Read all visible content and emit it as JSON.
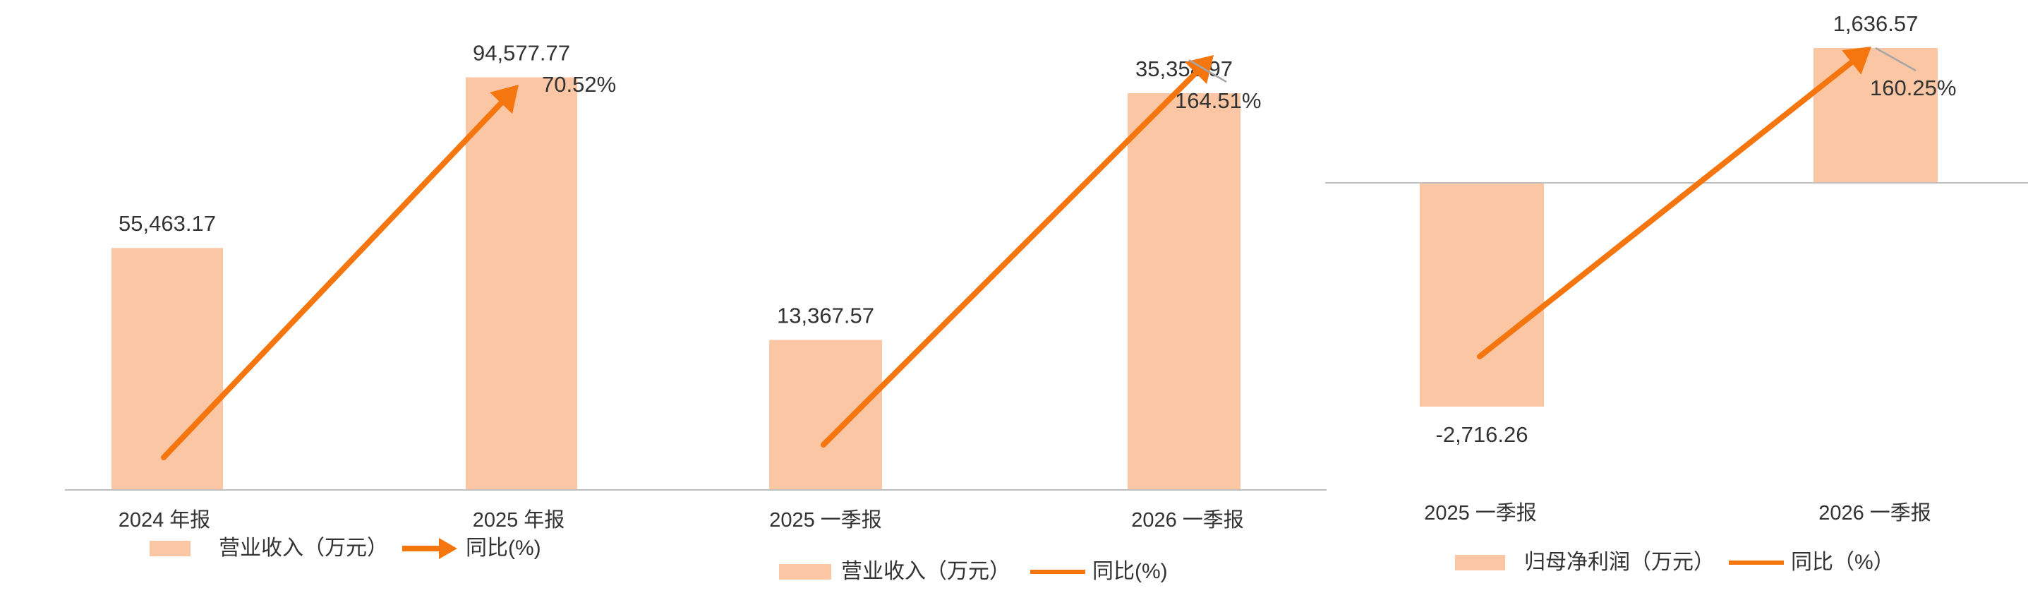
{
  "colors": {
    "bar": "#FBC6A4",
    "arrow": "#F5750F",
    "axis": "#BFBFBF",
    "leader": "#A6A6A6",
    "text": "#333333"
  },
  "chart_data": [
    {
      "type": "bar",
      "categories": [
        "2024 年报",
        "2025 年报"
      ],
      "series": [
        {
          "name": "营业收入（万元）",
          "values": [
            55463.17,
            94577.77
          ]
        }
      ],
      "bar_labels": [
        "55,463.17",
        "94,577.77"
      ],
      "ylim": [
        0,
        100000
      ],
      "growth": {
        "name": "同比(%)",
        "label": "70.52%",
        "value": 70.52,
        "marker": "arrow"
      },
      "legend": {
        "bar_label": "营业收入（万元）",
        "line_label": "同比(%)",
        "position": "bottom"
      },
      "grid": false
    },
    {
      "type": "bar",
      "categories": [
        "2025 一季报",
        "2026 一季报"
      ],
      "series": [
        {
          "name": "营业收入（万元）",
          "values": [
            13367.57,
            35358.97
          ]
        }
      ],
      "bar_labels": [
        "13,367.57",
        "35,358.97"
      ],
      "ylim": [
        0,
        37500
      ],
      "growth": {
        "name": "同比(%)",
        "label": "164.51%",
        "value": 164.51,
        "marker": "arrow"
      },
      "legend": {
        "bar_label": "营业收入（万元）",
        "line_label": "同比(%)",
        "position": "bottom"
      },
      "grid": false
    },
    {
      "type": "bar",
      "categories": [
        "2025 一季报",
        "2026 一季报"
      ],
      "series": [
        {
          "name": "归母净利润（万元）",
          "values": [
            -2716.26,
            1636.57
          ]
        }
      ],
      "bar_labels": [
        "-2,716.26",
        "1,636.57"
      ],
      "ylim": [
        -2716.26,
        1636.57
      ],
      "growth": {
        "name": "同比（%）",
        "label": "160.25%",
        "value": 160.25,
        "marker": "arrow"
      },
      "legend": {
        "bar_label": "归母净利润（万元）",
        "line_label": "同比（%）",
        "position": "bottom"
      },
      "grid": false
    }
  ]
}
